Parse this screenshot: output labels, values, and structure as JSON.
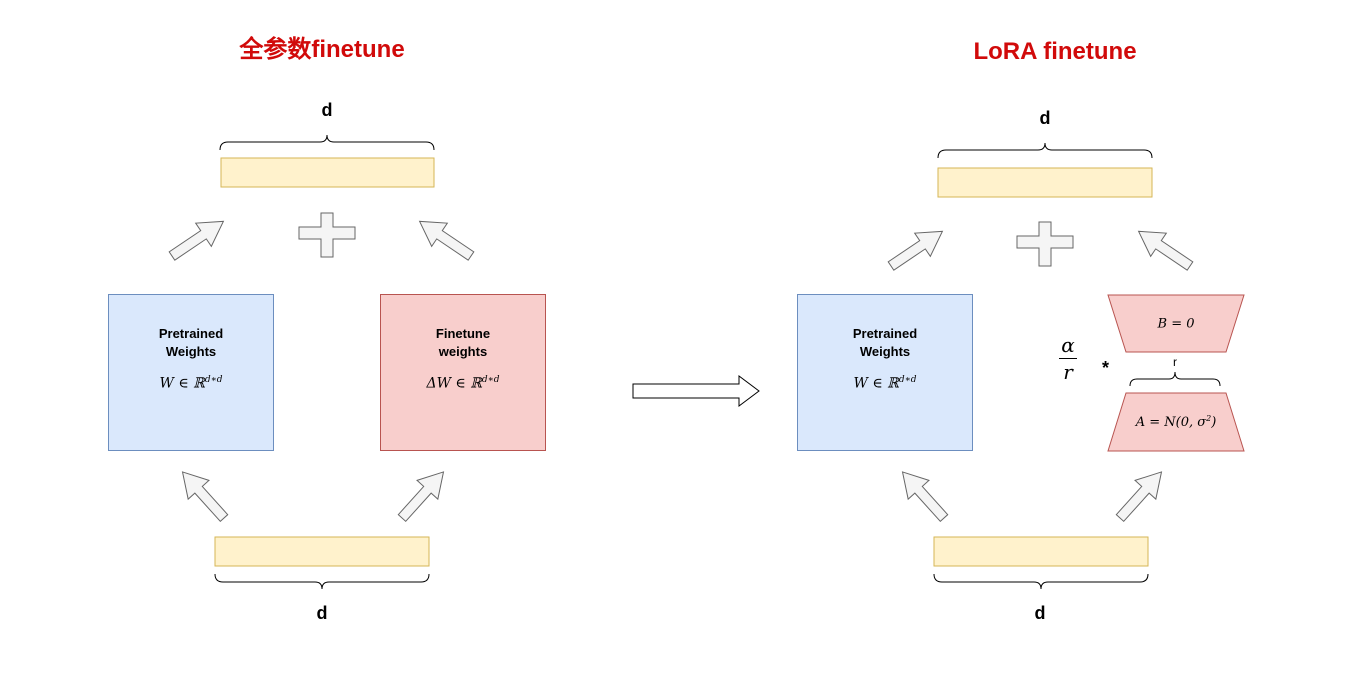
{
  "left_panel": {
    "title": "全参数finetune",
    "output_dim_label": "d",
    "input_dim_label": "d",
    "pretrained": {
      "name": "Pretrained\nWeights",
      "formula_base": "W ∈ ℝ",
      "formula_sup": "d∗d"
    },
    "finetune": {
      "name": "Finetune\nweights",
      "formula_base": "ΔW ∈ ℝ",
      "formula_sup": "d∗d"
    }
  },
  "right_panel": {
    "title": "LoRA finetune",
    "output_dim_label": "d",
    "input_dim_label": "d",
    "pretrained": {
      "name": "Pretrained\nWeights",
      "formula_base": "W ∈ ℝ",
      "formula_sup": "d∗d"
    },
    "matrix_b": "B = 0",
    "matrix_a_base": "A = N(0, σ",
    "matrix_a_sup": "2",
    "matrix_a_end": ")",
    "rank_label": "r",
    "scale_numerator": "α",
    "scale_denominator": "r",
    "multiply_symbol": "*"
  },
  "colors": {
    "title": "#d10a0a",
    "vector_fill": "#fff2cc",
    "vector_stroke": "#d6b656",
    "pretrained_fill": "#dae8fc",
    "pretrained_stroke": "#6c8ebf",
    "finetune_fill": "#f8cecc",
    "finetune_stroke": "#b85450",
    "arrow_fill": "#f5f5f5",
    "arrow_stroke": "#666666"
  }
}
